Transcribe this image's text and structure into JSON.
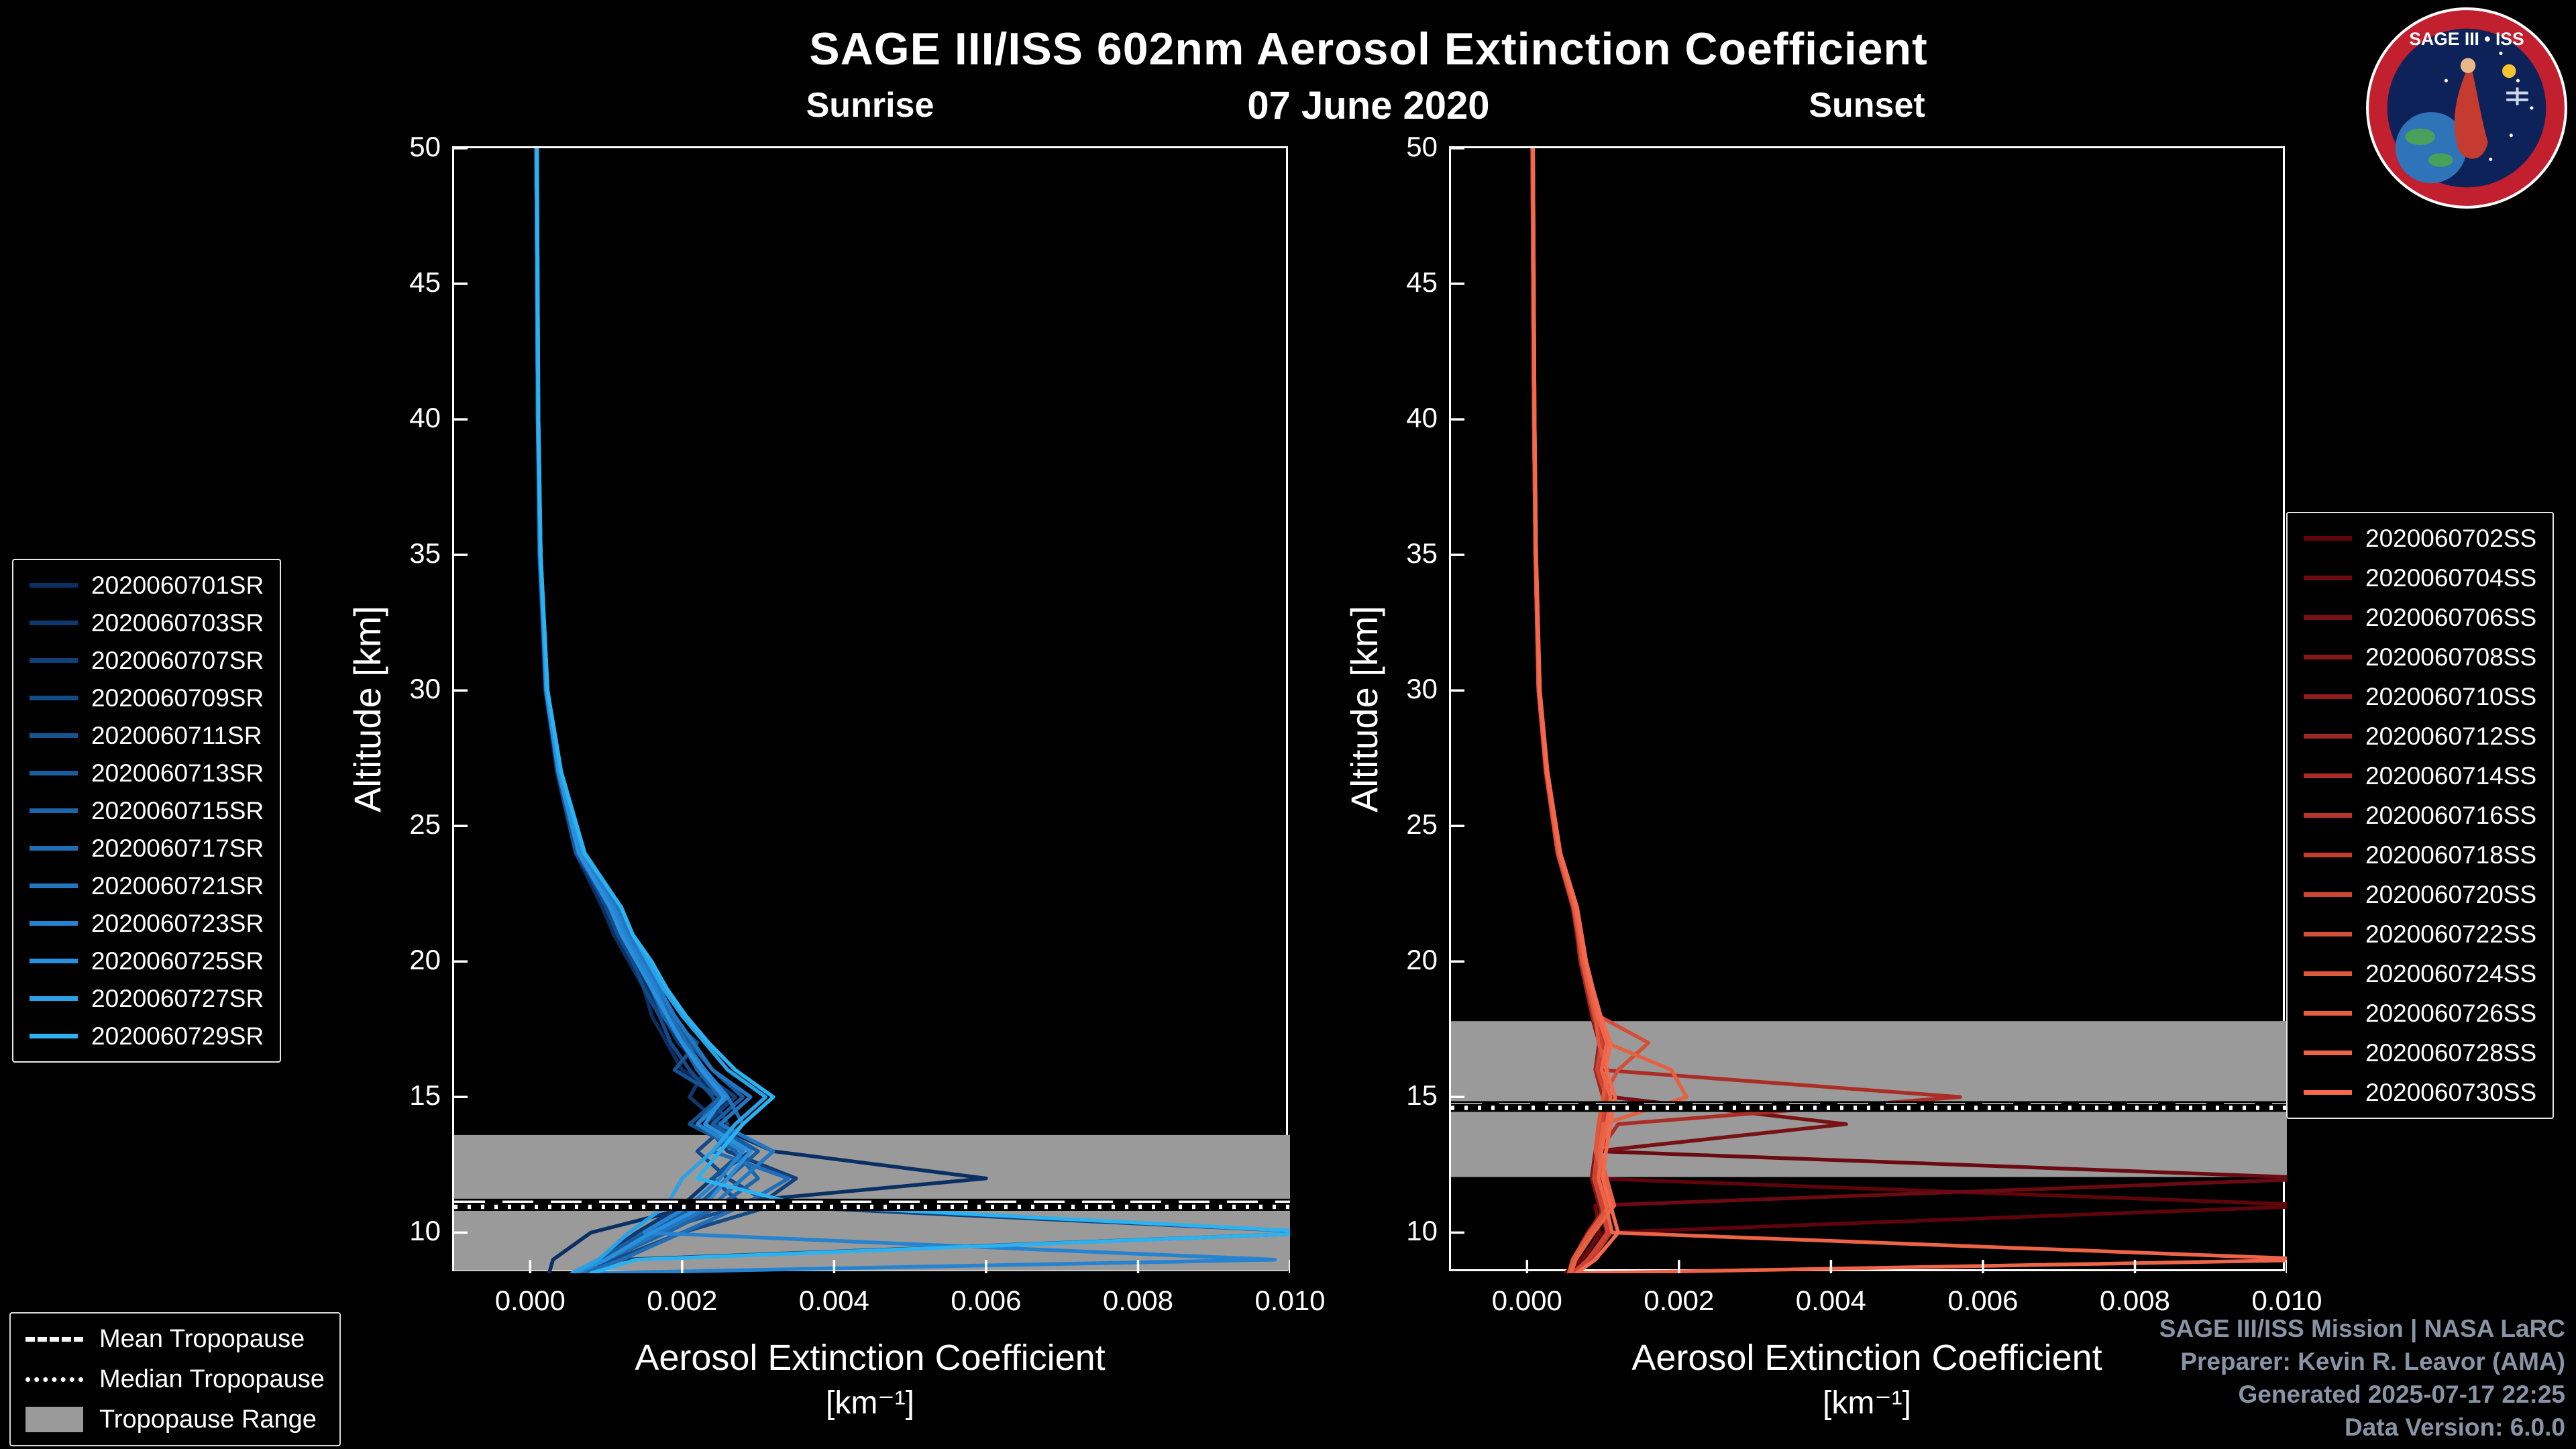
{
  "header": {
    "title": "SAGE III/ISS 602nm Aerosol Extinction Coefficient",
    "date": "07 June 2020"
  },
  "logo": {
    "title": "SAGE III • ISS"
  },
  "tropopause_legend": {
    "mean": "Mean Tropopause",
    "median": "Median Tropopause",
    "range": "Tropopause Range"
  },
  "credits": {
    "lines": [
      "SAGE III/ISS Mission | NASA LaRC",
      "Preparer: Kevin R. Leavor (AMA)",
      "Generated 2025-07-17 22:25",
      "Data Version: 6.0.0"
    ],
    "color": "#8893a5"
  },
  "chart_data": [
    {
      "type": "line",
      "title": "Sunrise",
      "xlabel": "Aerosol Extinction Coefficient",
      "xlabel_units": "[km⁻¹]",
      "ylabel": "Altitude [km]",
      "xlim": [
        -0.001,
        0.01
      ],
      "ylim": [
        8.5,
        50
      ],
      "xticks": [
        0.0,
        0.002,
        0.004,
        0.006,
        0.008,
        0.01
      ],
      "xtick_labels": [
        "0.000",
        "0.002",
        "0.004",
        "0.006",
        "0.008",
        "0.010"
      ],
      "yticks": [
        50,
        45,
        40,
        35,
        30,
        25,
        20,
        15,
        10
      ],
      "ytick_labels": [
        "50",
        "45",
        "40",
        "35",
        "30",
        "25",
        "20",
        "15",
        "10"
      ],
      "grid": false,
      "legend_side": "left",
      "tropopause": {
        "mean_km": 11.1,
        "median_km": 10.95,
        "range_km": [
          8.6,
          13.6
        ],
        "band_color": "#9a9a9a"
      },
      "altitudes": [
        50,
        45,
        40,
        35,
        30,
        27,
        24,
        22,
        21,
        20,
        19,
        18,
        17,
        16,
        15,
        14,
        13,
        12,
        11,
        10,
        9,
        8.5
      ],
      "series": [
        {
          "name": "2020060701SR",
          "color": "#0a2f63",
          "values": [
            8e-05,
            9e-05,
            0.0001,
            0.00012,
            0.0002,
            0.00035,
            0.0006,
            0.00095,
            0.0011,
            0.0013,
            0.0015,
            0.0016,
            0.0018,
            0.002,
            0.0026,
            0.0024,
            0.0032,
            0.006,
            0.0022,
            0.0008,
            0.0003,
            0.00025
          ]
        },
        {
          "name": "2020060703SR",
          "color": "#0d386f",
          "values": [
            8e-05,
            9e-05,
            0.0001,
            0.00013,
            0.00021,
            0.00036,
            0.00062,
            0.001,
            0.00115,
            0.00135,
            0.00155,
            0.00175,
            0.00195,
            0.0023,
            0.0021,
            0.0025,
            0.0029,
            0.0024,
            0.002,
            0.0014,
            0.0009,
            0.0006
          ]
        },
        {
          "name": "2020060707SR",
          "color": "#10417b",
          "values": [
            8e-05,
            9e-05,
            0.00011,
            0.00014,
            0.00022,
            0.0004,
            0.0007,
            0.0011,
            0.00125,
            0.00145,
            0.00165,
            0.0018,
            0.002,
            0.0022,
            0.0027,
            0.0023,
            0.0026,
            0.0035,
            0.003,
            0.0105,
            0.0012,
            0.0007
          ]
        },
        {
          "name": "2020060709SR",
          "color": "#134a87",
          "values": [
            8e-05,
            9e-05,
            0.0001,
            0.00013,
            0.0002,
            0.00037,
            0.00064,
            0.001,
            0.00115,
            0.00135,
            0.0015,
            0.0017,
            0.00185,
            0.0021,
            0.0024,
            0.0026,
            0.0022,
            0.0026,
            0.0032,
            0.002,
            0.0011,
            0.00065
          ]
        },
        {
          "name": "2020060711SR",
          "color": "#165393",
          "values": [
            8e-05,
            9e-05,
            0.0001,
            0.00012,
            0.00021,
            0.00036,
            0.0006,
            0.00105,
            0.0012,
            0.0014,
            0.0016,
            0.0018,
            0.0022,
            0.0019,
            0.0025,
            0.0021,
            0.0028,
            0.0024,
            0.0028,
            0.0016,
            0.001,
            0.0006
          ]
        },
        {
          "name": "2020060713SR",
          "color": "#195c9f",
          "values": [
            8e-05,
            9e-05,
            0.00011,
            0.00013,
            0.00022,
            0.00038,
            0.00066,
            0.0011,
            0.00125,
            0.0015,
            0.0017,
            0.0019,
            0.0021,
            0.0024,
            0.0028,
            0.0024,
            0.003,
            0.0026,
            0.0022,
            0.0015,
            0.0009,
            0.00055
          ]
        },
        {
          "name": "2020060715SR",
          "color": "#1c65ab",
          "values": [
            8e-05,
            9e-05,
            0.0001,
            0.00013,
            0.00021,
            0.00037,
            0.00063,
            0.00105,
            0.0012,
            0.0014,
            0.0016,
            0.00175,
            0.002,
            0.0022,
            0.0025,
            0.0022,
            0.0027,
            0.003,
            0.0025,
            0.0018,
            0.001,
            0.0006
          ]
        },
        {
          "name": "2020060717SR",
          "color": "#1f6eb7",
          "values": [
            8e-05,
            9e-05,
            0.0001,
            0.00013,
            0.00022,
            0.00039,
            0.00067,
            0.0011,
            0.00125,
            0.00145,
            0.00165,
            0.00185,
            0.00205,
            0.0023,
            0.0026,
            0.0028,
            0.0024,
            0.0034,
            0.0028,
            0.002,
            0.0012,
            0.0007
          ]
        },
        {
          "name": "2020060721SR",
          "color": "#2277c3",
          "values": [
            8e-05,
            9e-05,
            0.00011,
            0.00014,
            0.00023,
            0.0004,
            0.00068,
            0.00115,
            0.0013,
            0.0015,
            0.0017,
            0.0019,
            0.00215,
            0.0024,
            0.0029,
            0.0025,
            0.0032,
            0.0028,
            0.0024,
            0.0017,
            0.001,
            0.0006
          ]
        },
        {
          "name": "2020060723SR",
          "color": "#2583d0",
          "values": [
            8e-05,
            9e-05,
            0.0001,
            0.00013,
            0.00022,
            0.00038,
            0.00065,
            0.0011,
            0.00125,
            0.00145,
            0.00165,
            0.0018,
            0.002,
            0.0023,
            0.0026,
            0.0022,
            0.0028,
            0.0025,
            0.0021,
            0.0015,
            0.0098,
            0.0008
          ]
        },
        {
          "name": "2020060725SR",
          "color": "#2890dc",
          "values": [
            8e-05,
            9e-05,
            0.0001,
            0.00013,
            0.00021,
            0.00037,
            0.00064,
            0.00105,
            0.0012,
            0.0014,
            0.0016,
            0.0018,
            0.002,
            0.00225,
            0.00255,
            0.0023,
            0.0029,
            0.0026,
            0.0023,
            0.0016,
            0.001,
            0.0006
          ]
        },
        {
          "name": "2020060727SR",
          "color": "#29a1e6",
          "values": [
            9e-05,
            0.0001,
            0.00011,
            0.00014,
            0.00023,
            0.0004,
            0.0007,
            0.0012,
            0.00135,
            0.00155,
            0.00175,
            0.002,
            0.0023,
            0.0026,
            0.0031,
            0.0027,
            0.0024,
            0.002,
            0.0018,
            0.0013,
            0.0009,
            0.00055
          ]
        },
        {
          "name": "2020060729SR",
          "color": "#2bb2f0",
          "values": [
            9e-05,
            0.0001,
            0.00011,
            0.00014,
            0.00023,
            0.00041,
            0.00072,
            0.0012,
            0.00135,
            0.0016,
            0.0018,
            0.00205,
            0.00235,
            0.0027,
            0.0032,
            0.0028,
            0.0025,
            0.0022,
            0.0036,
            0.0105,
            0.0014,
            0.0008
          ]
        }
      ]
    },
    {
      "type": "line",
      "title": "Sunset",
      "xlabel": "Aerosol Extinction Coefficient",
      "xlabel_units": "[km⁻¹]",
      "ylabel": "Altitude [km]",
      "xlim": [
        -0.001,
        0.01
      ],
      "ylim": [
        8.5,
        50
      ],
      "xticks": [
        0.0,
        0.002,
        0.004,
        0.006,
        0.008,
        0.01
      ],
      "xtick_labels": [
        "0.000",
        "0.002",
        "0.004",
        "0.006",
        "0.008",
        "0.010"
      ],
      "yticks": [
        50,
        45,
        40,
        35,
        30,
        25,
        20,
        15,
        10
      ],
      "ytick_labels": [
        "50",
        "45",
        "40",
        "35",
        "30",
        "25",
        "20",
        "15",
        "10"
      ],
      "grid": false,
      "legend_side": "right",
      "tropopause": {
        "mean_km": 14.7,
        "median_km": 14.6,
        "range_km": [
          12.05,
          17.8
        ],
        "band_color": "#9a9a9a"
      },
      "altitudes": [
        50,
        45,
        40,
        35,
        30,
        27,
        24,
        22,
        21,
        20,
        19,
        18,
        17,
        16,
        15,
        14,
        13,
        12,
        11,
        10,
        9,
        8.5
      ],
      "series": [
        {
          "name": "2020060702SS",
          "color": "#5e040b",
          "values": [
            7e-05,
            8e-05,
            9e-05,
            0.00011,
            0.00015,
            0.00025,
            0.0004,
            0.0006,
            0.00065,
            0.0007,
            0.00078,
            0.00085,
            0.00095,
            0.0009,
            0.001,
            0.00095,
            0.0009,
            0.00085,
            0.0105,
            0.001,
            0.0007,
            0.0005
          ]
        },
        {
          "name": "2020060704SS",
          "color": "#6b0a10",
          "values": [
            7e-05,
            8e-05,
            9e-05,
            0.00011,
            0.00016,
            0.00026,
            0.00042,
            0.00062,
            0.00068,
            0.00072,
            0.0008,
            0.00088,
            0.00098,
            0.00092,
            0.00105,
            0.001,
            0.00095,
            0.0105,
            0.0009,
            0.00095,
            0.00075,
            0.00055
          ]
        },
        {
          "name": "2020060706SS",
          "color": "#781114",
          "values": [
            7e-05,
            8e-05,
            9e-05,
            0.00011,
            0.00015,
            0.00024,
            0.0004,
            0.0006,
            0.00066,
            0.00072,
            0.0008,
            0.0009,
            0.001,
            0.00095,
            0.0011,
            0.0042,
            0.0009,
            0.00085,
            0.00095,
            0.00105,
            0.0008,
            0.0006
          ]
        },
        {
          "name": "2020060708SS",
          "color": "#851818",
          "values": [
            7e-05,
            8e-05,
            9e-05,
            0.00011,
            0.00015,
            0.00025,
            0.00041,
            0.00061,
            0.00067,
            0.00071,
            0.00079,
            0.00086,
            0.00096,
            0.0009,
            0.00102,
            0.00096,
            0.0009,
            0.00086,
            0.00096,
            0.00106,
            0.0008,
            0.0006
          ]
        },
        {
          "name": "2020060710SS",
          "color": "#921f1d",
          "values": [
            7e-05,
            8e-05,
            9e-05,
            0.00011,
            0.00016,
            0.00026,
            0.00042,
            0.00062,
            0.00069,
            0.00073,
            0.00081,
            0.0009,
            0.001,
            0.00094,
            0.00106,
            0.001,
            0.00094,
            0.0009,
            0.001,
            0.0011,
            0.00085,
            0.00062
          ]
        },
        {
          "name": "2020060712SS",
          "color": "#9f2621",
          "values": [
            7e-05,
            8e-05,
            9e-05,
            0.00011,
            0.00015,
            0.00025,
            0.0004,
            0.0006,
            0.00066,
            0.0007,
            0.00078,
            0.00086,
            0.00096,
            0.0009,
            0.001,
            0.00095,
            0.0009,
            0.00095,
            0.00105,
            0.0008,
            0.0006,
            0.00055
          ]
        },
        {
          "name": "2020060714SS",
          "color": "#ac2d26",
          "values": [
            7e-05,
            8e-05,
            9e-05,
            0.00011,
            0.00016,
            0.00026,
            0.00042,
            0.00064,
            0.0007,
            0.00075,
            0.00083,
            0.00092,
            0.00104,
            0.00098,
            0.0057,
            0.0012,
            0.00095,
            0.0009,
            0.001,
            0.0011,
            0.00085,
            0.00062
          ]
        },
        {
          "name": "2020060716SS",
          "color": "#b9342a",
          "values": [
            7e-05,
            8e-05,
            9e-05,
            0.00011,
            0.00015,
            0.00025,
            0.00041,
            0.00062,
            0.00068,
            0.00073,
            0.00081,
            0.00089,
            0.00099,
            0.00093,
            0.00105,
            0.001,
            0.00094,
            0.0009,
            0.001,
            0.00108,
            0.00082,
            0.0006
          ]
        },
        {
          "name": "2020060718SS",
          "color": "#c33c2f",
          "values": [
            8e-05,
            8e-05,
            9e-05,
            0.00012,
            0.00016,
            0.00026,
            0.00042,
            0.00063,
            0.00069,
            0.00074,
            0.00082,
            0.0009,
            0.001,
            0.00095,
            0.00108,
            0.001,
            0.00095,
            0.0009,
            0.001,
            0.0011,
            0.00085,
            0.00062
          ]
        },
        {
          "name": "2020060720SS",
          "color": "#cc4534",
          "values": [
            7e-05,
            8e-05,
            9e-05,
            0.00011,
            0.00015,
            0.00025,
            0.0004,
            0.00061,
            0.00067,
            0.00072,
            0.0008,
            0.00088,
            0.00098,
            0.00092,
            0.00104,
            0.00098,
            0.00092,
            0.00088,
            0.00098,
            0.00106,
            0.0008,
            0.0006
          ]
        },
        {
          "name": "2020060722SS",
          "color": "#d54e38",
          "values": [
            8e-05,
            8e-05,
            9e-05,
            0.00012,
            0.00016,
            0.00026,
            0.00043,
            0.00064,
            0.00071,
            0.00076,
            0.00084,
            0.00094,
            0.0016,
            0.0012,
            0.001,
            0.00095,
            0.0009,
            0.001,
            0.0011,
            0.00085,
            0.00062,
            0.00055
          ]
        },
        {
          "name": "2020060724SS",
          "color": "#de573d",
          "values": [
            7e-05,
            8e-05,
            9e-05,
            0.00011,
            0.00015,
            0.00025,
            0.00041,
            0.00062,
            0.00068,
            0.00073,
            0.00081,
            0.0009,
            0.00094,
            0.00106,
            0.001,
            0.00094,
            0.0009,
            0.001,
            0.00108,
            0.00082,
            0.0006,
            0.00055
          ]
        },
        {
          "name": "2020060726SS",
          "color": "#e66042",
          "values": [
            8e-05,
            9e-05,
            0.0001,
            0.00012,
            0.00017,
            0.00027,
            0.00044,
            0.00066,
            0.00072,
            0.00078,
            0.00086,
            0.00096,
            0.00105,
            0.0019,
            0.0021,
            0.001,
            0.00095,
            0.00105,
            0.00115,
            0.00088,
            0.00064,
            0.00058
          ]
        },
        {
          "name": "2020060728SS",
          "color": "#ed6448",
          "values": [
            8e-05,
            9e-05,
            0.0001,
            0.00012,
            0.00016,
            0.00026,
            0.00043,
            0.00064,
            0.0007,
            0.00076,
            0.00084,
            0.00093,
            0.00105,
            0.00098,
            0.0011,
            0.00105,
            0.00098,
            0.00094,
            0.00104,
            0.00112,
            0.0105,
            0.0007
          ]
        },
        {
          "name": "2020060730SS",
          "color": "#f4694e",
          "values": [
            8e-05,
            9e-05,
            0.0001,
            0.00012,
            0.00017,
            0.00027,
            0.00044,
            0.00066,
            0.00072,
            0.00078,
            0.00087,
            0.00097,
            0.0011,
            0.00104,
            0.00116,
            0.0011,
            0.00104,
            0.001,
            0.0011,
            0.0012,
            0.0009,
            0.00065
          ]
        }
      ]
    }
  ]
}
